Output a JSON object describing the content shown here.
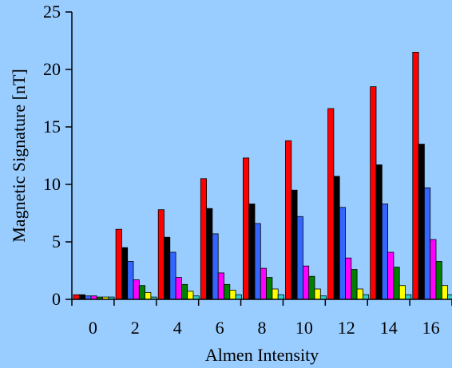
{
  "chart_data": {
    "type": "bar",
    "title": "",
    "xlabel": "Almen Intensity",
    "ylabel": "Magnetic Signature [nT]",
    "ylim": [
      0,
      25
    ],
    "yticks": [
      "0",
      "5",
      "10",
      "15",
      "20",
      "25"
    ],
    "categories": [
      "0",
      "2",
      "4",
      "6",
      "8",
      "10",
      "12",
      "14",
      "16"
    ],
    "grid": false,
    "legend": "none",
    "series": [
      {
        "color": "#ff0000",
        "values": [
          0.4,
          6.1,
          7.8,
          10.5,
          12.3,
          13.8,
          16.6,
          18.5,
          21.5
        ]
      },
      {
        "color": "#000000",
        "values": [
          0.4,
          4.5,
          5.4,
          7.9,
          8.3,
          9.5,
          10.7,
          11.7,
          13.5
        ]
      },
      {
        "color": "#3366ff",
        "values": [
          0.3,
          3.3,
          4.1,
          5.7,
          6.6,
          7.2,
          8.0,
          8.3,
          9.7
        ]
      },
      {
        "color": "#ff00ff",
        "values": [
          0.3,
          1.7,
          1.9,
          2.3,
          2.7,
          2.9,
          3.6,
          4.1,
          5.2
        ]
      },
      {
        "color": "#008000",
        "values": [
          0.2,
          1.2,
          1.3,
          1.3,
          1.9,
          2.0,
          2.6,
          2.8,
          3.3
        ]
      },
      {
        "color": "#ffff00",
        "values": [
          0.2,
          0.6,
          0.7,
          0.8,
          0.9,
          0.9,
          0.9,
          1.2,
          1.2
        ]
      },
      {
        "color": "#33cccc",
        "values": [
          0.2,
          0.2,
          0.3,
          0.4,
          0.4,
          0.3,
          0.4,
          0.4,
          0.4
        ]
      }
    ]
  }
}
